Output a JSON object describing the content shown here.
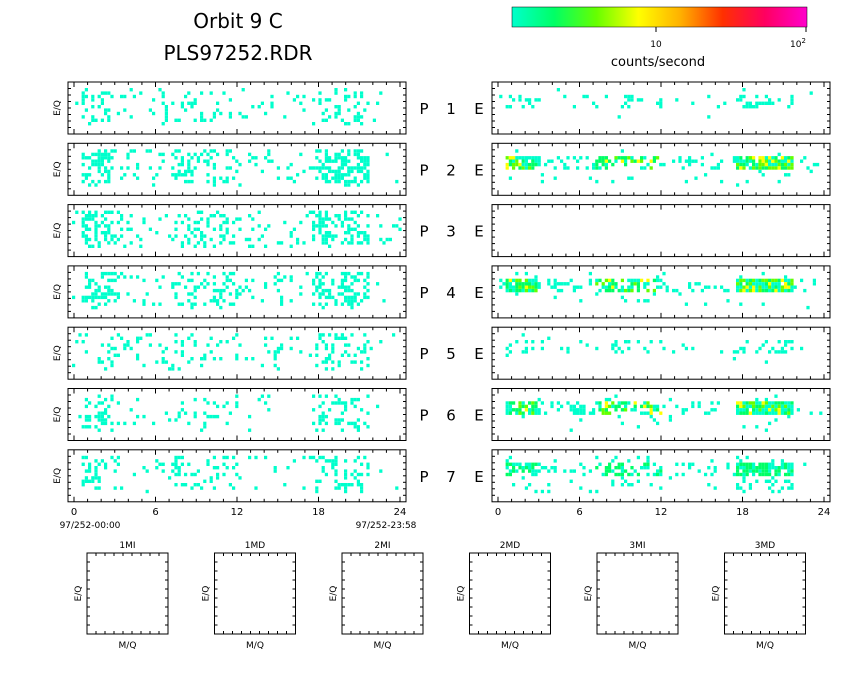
{
  "header": {
    "title_line1": "Orbit 9 C",
    "title_line2": "PLS97252.RDR"
  },
  "colorbar": {
    "label": "counts/second",
    "tick_10": "10",
    "tick_100": "10",
    "tick_100_exp": "2",
    "colors": [
      "#00ffcc",
      "#00ff66",
      "#66ff00",
      "#ffff00",
      "#ffb000",
      "#ff3000",
      "#ff0060",
      "#ff00cc"
    ]
  },
  "axis_text": {
    "eq_label": "E/Q",
    "mq_label": "M/Q",
    "start_time": "97/252-00:00",
    "end_time": "97/252-23:58",
    "p_label": "P",
    "e_label": "E"
  },
  "chart_data": {
    "type": "heatmap",
    "x_ticks": [
      "0",
      "6",
      "12",
      "18",
      "24"
    ],
    "x_range": [
      0,
      24
    ],
    "channels": [
      {
        "number": "1",
        "left_level": 1,
        "right_level": 1
      },
      {
        "number": "2",
        "left_level": 2,
        "right_level": 3
      },
      {
        "number": "3",
        "left_level": 2,
        "right_level": 0
      },
      {
        "number": "4",
        "left_level": 2,
        "right_level": 3
      },
      {
        "number": "5",
        "left_level": 1,
        "right_level": 1
      },
      {
        "number": "6",
        "left_level": 1,
        "right_level": 3
      },
      {
        "number": "7",
        "left_level": 1,
        "right_level": 2
      }
    ],
    "mass_panels": [
      "1MI",
      "1MD",
      "2MI",
      "2MD",
      "3MI",
      "3MD"
    ]
  }
}
